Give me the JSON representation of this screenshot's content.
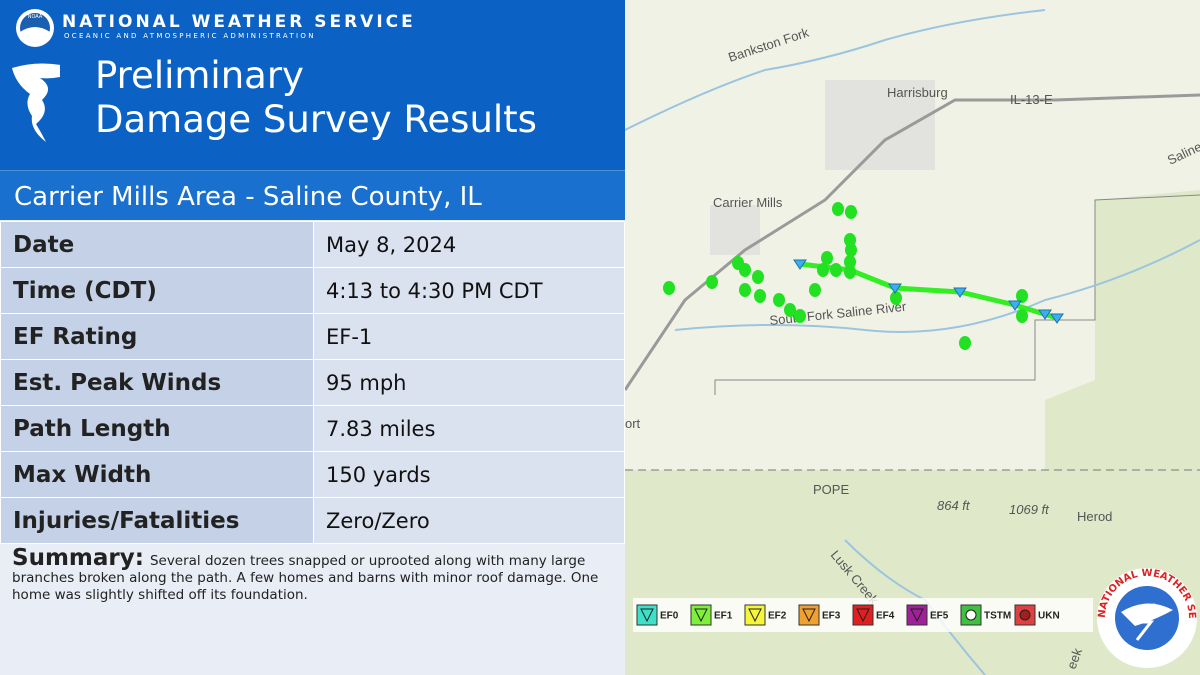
{
  "header": {
    "agency": "NATIONAL WEATHER SERVICE",
    "subagency": "OCEANIC AND ATMOSPHERIC ADMINISTRATION",
    "logo": "NOAA",
    "title_line1": "Preliminary",
    "title_line2": "Damage Survey Results"
  },
  "location": "Carrier Mills Area - Saline County, IL",
  "table": {
    "rows": [
      [
        "Date",
        "May 8, 2024"
      ],
      [
        "Time (CDT)",
        "4:13 to 4:30 PM CDT"
      ],
      [
        "EF Rating",
        "EF-1"
      ],
      [
        "Est. Peak Winds",
        "95 mph"
      ],
      [
        "Path Length",
        "7.83 miles"
      ],
      [
        "Max Width",
        "150 yards"
      ],
      [
        "Injuries/Fatalities",
        "Zero/Zero"
      ]
    ]
  },
  "summary": {
    "label": "Summary:",
    "text": "Several dozen trees snapped or uprooted along with many large branches broken along the path. A few homes and barns with minor roof damage. One home was slightly shifted off its foundation."
  },
  "map": {
    "labels": [
      "Bankston Fork",
      "Harrisburg",
      "IL-13-E",
      "Saline",
      "Carrier Mills",
      "South Fork Saline River",
      "ort",
      "POPE",
      "864 ft",
      "1069 ft",
      "Herod",
      "Lusk Creek",
      "eek"
    ],
    "legend": [
      "EF0",
      "EF1",
      "EF2",
      "EF3",
      "EF4",
      "EF5",
      "TSTM",
      "UKN"
    ],
    "logo_text": "NATIONAL WEATHER SERVICE"
  }
}
